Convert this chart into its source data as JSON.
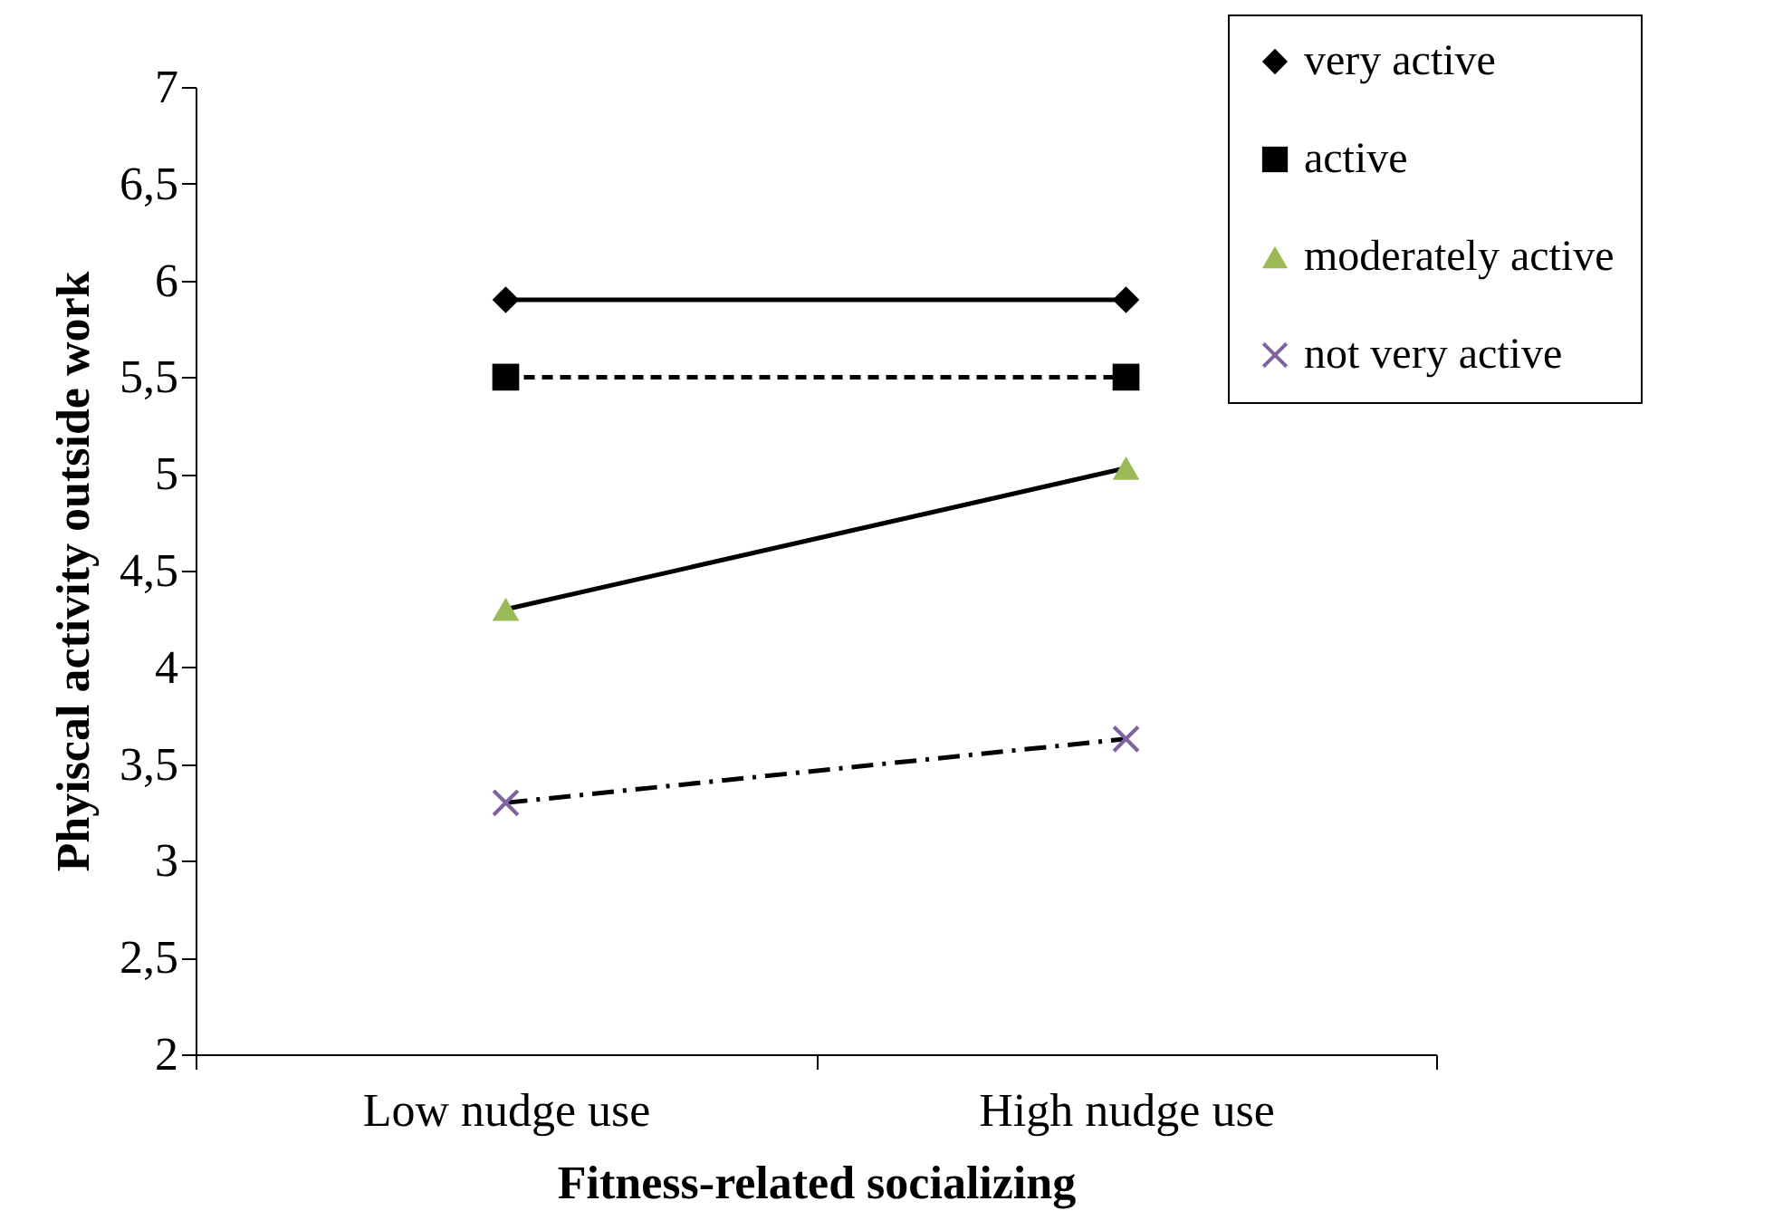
{
  "chart_data": {
    "type": "line",
    "xlabel": "Fitness-related socializing",
    "ylabel": "Phyiscal activity outside work",
    "categories": [
      "Low nudge use",
      "High nudge use"
    ],
    "series": [
      {
        "name": "very active",
        "color": "#000000",
        "marker": "diamond",
        "line_style": "solid",
        "values": [
          5.9,
          5.9
        ]
      },
      {
        "name": "active",
        "color": "#000000",
        "marker": "square",
        "line_style": "dashed",
        "values": [
          5.5,
          5.5
        ]
      },
      {
        "name": "moderately active",
        "color": "#9bbb59",
        "marker": "triangle",
        "line_style": "solid",
        "values": [
          4.3,
          5.03
        ]
      },
      {
        "name": "not very active",
        "color": "#8064a2",
        "marker": "cross",
        "line_style": "dashdot",
        "values": [
          3.3,
          3.63
        ]
      }
    ],
    "ylim": [
      2,
      7
    ],
    "yticks": [
      2,
      {
        "value": 2.5,
        "label": "2,5"
      },
      3,
      {
        "value": 3.5,
        "label": "3,5"
      },
      4,
      {
        "value": 4.5,
        "label": "4,5"
      },
      5,
      {
        "value": 5.5,
        "label": "5,5"
      },
      6,
      {
        "value": 6.5,
        "label": "6,5"
      },
      7
    ],
    "grid": false,
    "legend": "top right"
  }
}
